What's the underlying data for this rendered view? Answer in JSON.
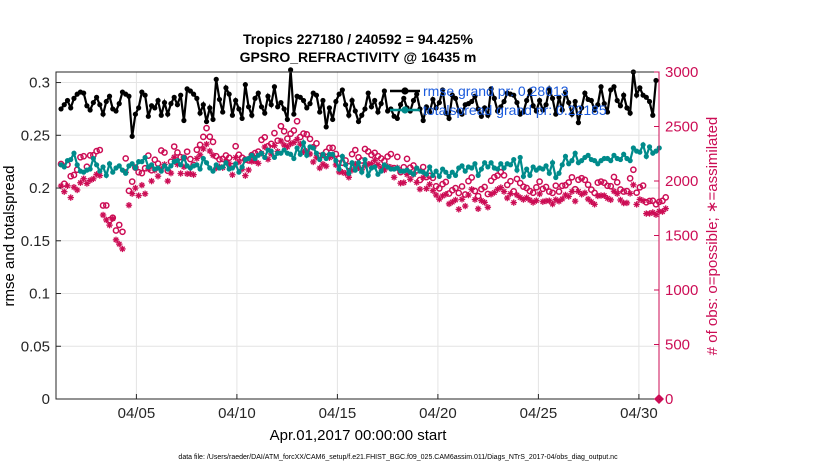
{
  "chart_data": {
    "type": "line",
    "title": "Tropics 227180 / 240592 = 94.425%",
    "subtitle": "GPSRO_REFRACTIVITY @ 16435 m",
    "xlabel": "Apr.01,2017 00:00:00 start",
    "ylabel_left": "rmse and totalspread",
    "ylabel_right": "# of obs: o=possible; ∗=assimilated",
    "footnote": "data file: /Users/raeder/DAI/ATM_forcXX/CAM6_setup/f.e21.FHIST_BGC.f09_025.CAM6assim.011/Diags_NTrS_2017-04/obs_diag_output.nc",
    "x_ticks": [
      5,
      10,
      15,
      20,
      25,
      30
    ],
    "x_tick_labels": [
      "04/05",
      "04/10",
      "04/15",
      "04/20",
      "04/25",
      "04/30"
    ],
    "xlim": [
      1,
      31
    ],
    "ylim_left": [
      0,
      0.31
    ],
    "y_ticks_left": [
      0,
      0.05,
      0.1,
      0.15,
      0.2,
      0.25,
      0.3
    ],
    "y_tick_labels_left": [
      "0",
      "0.05",
      "0.1",
      "0.15",
      "0.2",
      "0.25",
      "0.3"
    ],
    "ylim_right": [
      0,
      3000
    ],
    "y_ticks_right": [
      0,
      500,
      1000,
      1500,
      2000,
      2500,
      3000
    ],
    "y_tick_labels_right": [
      "0",
      "500",
      "1000",
      "1500",
      "2000",
      "2500",
      "3000"
    ],
    "grid": true,
    "legend_position": "top-right",
    "series_colors": {
      "rmse": "#000000",
      "totalspread": "#008b8b",
      "obs": "#cc0d55"
    },
    "series": [
      {
        "name": "rmse",
        "legend": "rmse grand pr: 0.28013",
        "axis": "left",
        "style": "line-dot",
        "values": [
          0.275,
          0.279,
          0.283,
          0.276,
          0.285,
          0.289,
          0.291,
          0.29,
          0.278,
          0.274,
          0.281,
          0.286,
          0.279,
          0.27,
          0.282,
          0.287,
          0.275,
          0.273,
          0.28,
          0.291,
          0.289,
          0.287,
          0.249,
          0.27,
          0.276,
          0.291,
          0.288,
          0.268,
          0.278,
          0.276,
          0.283,
          0.269,
          0.281,
          0.27,
          0.28,
          0.286,
          0.279,
          0.288,
          0.264,
          0.294,
          0.292,
          0.289,
          0.285,
          0.271,
          0.279,
          0.263,
          0.276,
          0.265,
          0.303,
          0.284,
          0.272,
          0.295,
          0.289,
          0.269,
          0.283,
          0.275,
          0.266,
          0.298,
          0.277,
          0.269,
          0.285,
          0.29,
          0.277,
          0.271,
          0.287,
          0.279,
          0.296,
          0.277,
          0.281,
          0.275,
          0.265,
          0.312,
          0.27,
          0.287,
          0.286,
          0.283,
          0.276,
          0.28,
          0.29,
          0.288,
          0.272,
          0.283,
          0.258,
          0.276,
          0.265,
          0.282,
          0.289,
          0.293,
          0.279,
          0.269,
          0.283,
          0.273,
          0.263,
          0.269,
          0.275,
          0.29,
          0.277,
          0.283,
          0.272,
          0.28,
          0.292,
          0.273,
          0.275,
          0.268,
          0.266,
          0.279,
          0.285,
          0.276,
          0.273,
          0.283,
          0.289,
          0.275,
          0.264,
          0.277,
          0.272,
          0.284,
          0.276,
          0.281,
          0.293,
          0.271,
          0.266,
          0.288,
          0.285,
          0.273,
          0.27,
          0.279,
          0.28,
          0.282,
          0.287,
          0.275,
          0.268,
          0.276,
          0.269,
          0.294,
          0.285,
          0.273,
          0.277,
          0.282,
          0.29,
          0.289,
          0.288,
          0.281,
          0.27,
          0.272,
          0.283,
          0.292,
          0.278,
          0.273,
          0.283,
          0.274,
          0.279,
          0.294,
          0.285,
          0.27,
          0.286,
          0.274,
          0.291,
          0.281,
          0.27,
          0.282,
          0.262,
          0.276,
          0.29,
          0.284,
          0.283,
          0.274,
          0.279,
          0.296,
          0.28,
          0.272,
          0.293,
          0.296,
          0.283,
          0.278,
          0.288,
          0.276,
          0.271,
          0.31,
          0.288,
          0.295,
          0.288,
          0.286,
          0.282,
          0.269,
          0.302
        ]
      },
      {
        "name": "totalspread",
        "legend": "totalspread grand pr: 0.22185",
        "axis": "left",
        "style": "line-dot",
        "values": [
          0.222,
          0.22,
          0.226,
          0.227,
          0.233,
          0.222,
          0.216,
          0.215,
          0.217,
          0.218,
          0.228,
          0.222,
          0.216,
          0.22,
          0.212,
          0.223,
          0.215,
          0.219,
          0.221,
          0.217,
          0.214,
          0.221,
          0.223,
          0.219,
          0.225,
          0.225,
          0.229,
          0.22,
          0.222,
          0.218,
          0.219,
          0.216,
          0.221,
          0.218,
          0.221,
          0.225,
          0.226,
          0.222,
          0.229,
          0.221,
          0.219,
          0.221,
          0.222,
          0.218,
          0.228,
          0.224,
          0.219,
          0.216,
          0.222,
          0.219,
          0.22,
          0.224,
          0.218,
          0.219,
          0.223,
          0.215,
          0.22,
          0.227,
          0.228,
          0.231,
          0.228,
          0.231,
          0.233,
          0.229,
          0.236,
          0.235,
          0.229,
          0.233,
          0.233,
          0.236,
          0.233,
          0.232,
          0.228,
          0.238,
          0.232,
          0.243,
          0.231,
          0.239,
          0.238,
          0.233,
          0.227,
          0.232,
          0.228,
          0.232,
          0.232,
          0.226,
          0.218,
          0.23,
          0.222,
          0.214,
          0.224,
          0.217,
          0.224,
          0.215,
          0.227,
          0.212,
          0.219,
          0.22,
          0.213,
          0.216,
          0.222,
          0.22,
          0.218,
          0.218,
          0.219,
          0.216,
          0.216,
          0.217,
          0.215,
          0.213,
          0.219,
          0.216,
          0.215,
          0.213,
          0.22,
          0.212,
          0.216,
          0.211,
          0.218,
          0.215,
          0.211,
          0.215,
          0.212,
          0.219,
          0.221,
          0.216,
          0.22,
          0.219,
          0.223,
          0.212,
          0.218,
          0.224,
          0.22,
          0.224,
          0.219,
          0.218,
          0.223,
          0.219,
          0.223,
          0.222,
          0.227,
          0.217,
          0.229,
          0.211,
          0.218,
          0.212,
          0.22,
          0.217,
          0.219,
          0.218,
          0.221,
          0.214,
          0.224,
          0.21,
          0.214,
          0.222,
          0.23,
          0.223,
          0.226,
          0.233,
          0.224,
          0.226,
          0.229,
          0.231,
          0.227,
          0.226,
          0.223,
          0.226,
          0.228,
          0.228,
          0.226,
          0.231,
          0.228,
          0.227,
          0.232,
          0.228,
          0.226,
          0.238,
          0.235,
          0.234,
          0.241,
          0.23,
          0.239,
          0.233,
          0.235,
          0.238
        ]
      },
      {
        "name": "possible",
        "legend": "",
        "axis": "right",
        "style": "circle",
        "values": [
          2156,
          1975,
          2150,
          2044,
          2055,
          2103,
          2218,
          2227,
          2131,
          2235,
          2236,
          2274,
          2284,
          1775,
          1776,
          1641,
          1663,
          1546,
          1597,
          1534,
          2207,
          1910,
          1994,
          2123,
          2080,
          2072,
          2117,
          2233,
          2098,
          2195,
          2160,
          2280,
          2261,
          2094,
          2177,
          2316,
          2262,
          2219,
          2214,
          2269,
          2201,
          2148,
          2287,
          2332,
          2405,
          2485,
          2406,
          2359,
          2227,
          2198,
          2203,
          2234,
          2213,
          2137,
          2319,
          2241,
          2214,
          2196,
          2189,
          2238,
          2256,
          2270,
          2377,
          2401,
          2319,
          2341,
          2439,
          2370,
          2503,
          2456,
          2389,
          2434,
          2463,
          2548,
          2404,
          2435,
          2428,
          2386,
          2310,
          2345,
          2231,
          2238,
          2268,
          2304,
          2304,
          2248,
          2206,
          2167,
          2188,
          2136,
          2246,
          2284,
          2217,
          2188,
          2294,
          2271,
          2240,
          2258,
          2228,
          2207,
          2183,
          2224,
          2247,
          2118,
          2221,
          2081,
          2126,
          2203,
          2123,
          2142,
          2097,
          2009,
          2128,
          2036,
          2047,
          2029,
          1952,
          1932,
          1971,
          1991,
          1885,
          1915,
          1935,
          1890,
          1950,
          1876,
          1999,
          2032,
          1908,
          1862,
          1925,
          1945,
          1881,
          2002,
          2035,
          2050,
          2081,
          2052,
          1964,
          1998,
          1905,
          2019,
          1981,
          1948,
          1936,
          1907,
          1892,
          1942,
          1994,
          1928,
          1945,
          1903,
          1891,
          1957,
          1903,
          1956,
          1961,
          1987,
          2034,
          1925,
          2011,
          2026,
          2010,
          1966,
          1921,
          1891,
          1985,
          1995,
          1984,
          1956,
          1952,
          2037,
          1988,
          1922,
          1903,
          1907,
          2024,
          2103,
          1893,
          1942,
          1958,
          1805,
          1817,
          1819,
          1787,
          1809,
          1818,
          1850
        ]
      },
      {
        "name": "assimilated",
        "legend": "",
        "axis": "right",
        "style": "asterisk",
        "values": [
          1954,
          1902,
          1956,
          1848,
          1943,
          1918,
          1984,
          2021,
          1977,
          2006,
          2020,
          2061,
          2050,
          1688,
          1643,
          1595,
          1655,
          1460,
          1421,
          1377,
          2080,
          1778,
          1884,
          1935,
          1866,
          1962,
          1883,
          2110,
          1999,
          2099,
          2044,
          2112,
          2152,
          1999,
          2072,
          2218,
          2152,
          2069,
          2130,
          2066,
          2067,
          2058,
          2207,
          2240,
          2295,
          2338,
          2275,
          2236,
          2119,
          2131,
          2122,
          2181,
          2159,
          2057,
          2215,
          2174,
          2108,
          2049,
          2101,
          2179,
          2183,
          2162,
          2254,
          2312,
          2199,
          2248,
          2324,
          2271,
          2367,
          2330,
          2313,
          2341,
          2353,
          2382,
          2338,
          2268,
          2273,
          2248,
          2175,
          2218,
          2119,
          2154,
          2136,
          2214,
          2229,
          2148,
          2083,
          2081,
          2070,
          2034,
          2099,
          2155,
          2121,
          2103,
          2142,
          2154,
          2159,
          2190,
          2151,
          2118,
          2101,
          2134,
          2126,
          2034,
          2121,
          1980,
          1985,
          2060,
          2016,
          2061,
          1987,
          1925,
          2030,
          1930,
          1970,
          1911,
          1871,
          1833,
          1863,
          1878,
          1790,
          1807,
          1826,
          1740,
          1832,
          1770,
          1871,
          1924,
          1830,
          1745,
          1820,
          1804,
          1759,
          1878,
          1894,
          1924,
          1940,
          1903,
          1844,
          1884,
          1802,
          1871,
          1849,
          1830,
          1847,
          1825,
          1803,
          1820,
          1881,
          1810,
          1817,
          1819,
          1788,
          1829,
          1814,
          1835,
          1872,
          1858,
          1903,
          1815,
          1904,
          1878,
          1892,
          1834,
          1809,
          1786,
          1863,
          1867,
          1866,
          1841,
          1827,
          1906,
          1884,
          1826,
          1798,
          1799,
          1886,
          1965,
          1785,
          1831,
          1819,
          1701,
          1702,
          1712,
          1691,
          1722,
          1719,
          1747
        ]
      }
    ]
  }
}
